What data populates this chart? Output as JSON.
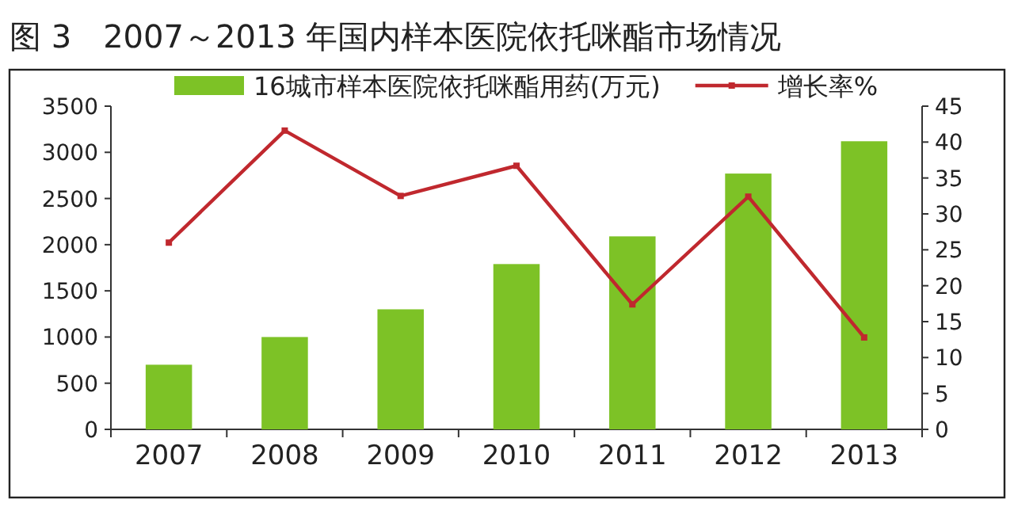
{
  "chart_data": {
    "type": "bar",
    "title": "图 3　2007～2013 年国内样本医院依托咪酯市场情况",
    "categories": [
      "2007",
      "2008",
      "2009",
      "2010",
      "2011",
      "2012",
      "2013"
    ],
    "series": [
      {
        "name": "16城市样本医院依托咪酯用药(万元)",
        "color": "#7dc226",
        "values": [
          700,
          1000,
          1300,
          1790,
          2090,
          2770,
          3120
        ]
      },
      {
        "name": "增长率%",
        "type": "line",
        "axis": "y2",
        "color": "#c0282e",
        "marker": "square",
        "values": [
          26,
          41.6,
          32.5,
          36.7,
          17.4,
          32.4,
          12.8
        ]
      }
    ],
    "ylim": [
      0,
      3500
    ],
    "yticks": [
      0,
      500,
      1000,
      1500,
      2000,
      2500,
      3000,
      3500
    ],
    "y2lim": [
      0,
      45
    ],
    "y2ticks": [
      0,
      5,
      10,
      15,
      20,
      25,
      30,
      35,
      40,
      45
    ],
    "legend": "top",
    "grid": false
  }
}
